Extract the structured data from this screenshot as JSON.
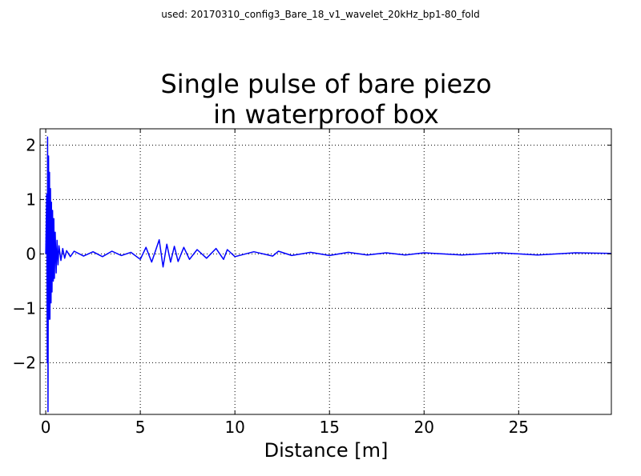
{
  "note": "used: 20170310_config3_Bare_18_v1_wavelet_20kHz_bp1-80_fold",
  "chart_data": {
    "type": "line",
    "title": [
      "Single pulse of bare piezo",
      "in waterproof box"
    ],
    "xlabel": "Distance [m]",
    "ylabel": "",
    "xlim": [
      -0.3,
      29.9
    ],
    "ylim": [
      -2.95,
      2.3
    ],
    "xticks": [
      0,
      5,
      10,
      15,
      20,
      25
    ],
    "xtick_labels": [
      "0",
      "5",
      "10",
      "15",
      "20",
      "25"
    ],
    "yticks": [
      -2,
      -1,
      0,
      1,
      2
    ],
    "ytick_labels": [
      "−2",
      "−1",
      "0",
      "1",
      "2"
    ],
    "grid": true,
    "line_color": "#0000ff",
    "series": [
      {
        "x": [
          0.0,
          0.05,
          0.08,
          0.1,
          0.12,
          0.15,
          0.18,
          0.2,
          0.22,
          0.25,
          0.28,
          0.3,
          0.33,
          0.36,
          0.4,
          0.43,
          0.46,
          0.5,
          0.55,
          0.6,
          0.65,
          0.7,
          0.8,
          0.9,
          1.0,
          1.1,
          1.3,
          1.5,
          2.0,
          2.5,
          3.0,
          3.5,
          4.0,
          4.5,
          5.0,
          5.3,
          5.6,
          6.0,
          6.2,
          6.4,
          6.6,
          6.8,
          7.0,
          7.3,
          7.6,
          8.0,
          8.5,
          9.0,
          9.4,
          9.6,
          10.0,
          11.0,
          12.0,
          12.3,
          13.0,
          14.0,
          15.0,
          16.0,
          17.0,
          18.0,
          19.0,
          20.0,
          22.0,
          24.0,
          26.0,
          28.0,
          29.9
        ],
        "y": [
          0.0,
          1.1,
          -2.0,
          2.15,
          -2.9,
          1.8,
          -1.2,
          1.5,
          -1.2,
          1.2,
          -0.9,
          0.95,
          -0.7,
          0.8,
          -0.5,
          0.65,
          -0.45,
          0.4,
          -0.35,
          0.25,
          -0.2,
          0.15,
          -0.12,
          0.1,
          -0.08,
          0.06,
          -0.05,
          0.05,
          -0.04,
          0.04,
          -0.05,
          0.05,
          -0.03,
          0.03,
          -0.1,
          0.12,
          -0.15,
          0.26,
          -0.24,
          0.18,
          -0.15,
          0.14,
          -0.14,
          0.12,
          -0.1,
          0.08,
          -0.08,
          0.1,
          -0.1,
          0.08,
          -0.05,
          0.04,
          -0.04,
          0.05,
          -0.03,
          0.03,
          -0.03,
          0.03,
          -0.02,
          0.02,
          -0.02,
          0.02,
          -0.02,
          0.02,
          -0.02,
          0.02,
          0.01
        ]
      }
    ]
  }
}
